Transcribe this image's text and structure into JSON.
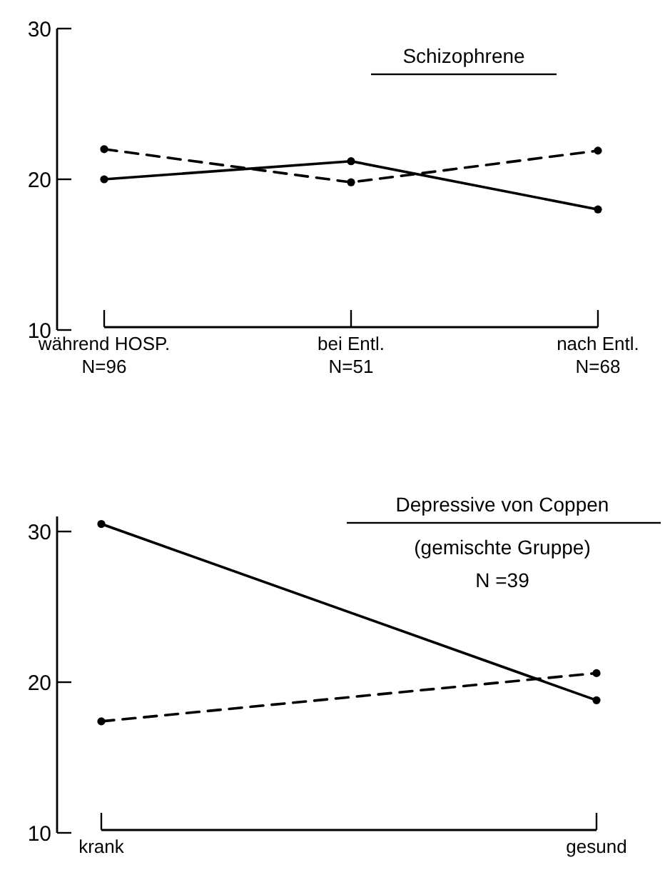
{
  "chart_data": [
    {
      "type": "line",
      "title": "Schizophrene",
      "categories": [
        "während HOSP.\nN=96",
        "bei Entl.\nN=51",
        "nach Entl.\nN=68"
      ],
      "ylim": [
        10,
        30
      ],
      "yticks": [
        10,
        20,
        30
      ],
      "marker": "circle",
      "grid": false,
      "series": [
        {
          "color": "#000000",
          "line_style": "solid",
          "values": [
            20,
            21.2,
            18
          ]
        },
        {
          "color": "#000000",
          "line_style": "dashed",
          "values": [
            22,
            19.8,
            21.9
          ]
        }
      ]
    },
    {
      "type": "line",
      "title": "Depressive von Coppen",
      "subtitle": "(gemischte Gruppe)",
      "annotations": [
        "N =39"
      ],
      "categories": [
        "krank",
        "gesund"
      ],
      "ylim": [
        10,
        31
      ],
      "yticks": [
        10,
        20,
        30
      ],
      "marker": "circle",
      "grid": false,
      "series": [
        {
          "color": "#000000",
          "line_style": "solid",
          "values": [
            30.5,
            18.8
          ]
        },
        {
          "color": "#000000",
          "line_style": "dashed",
          "values": [
            17.4,
            20.6
          ]
        }
      ]
    }
  ]
}
